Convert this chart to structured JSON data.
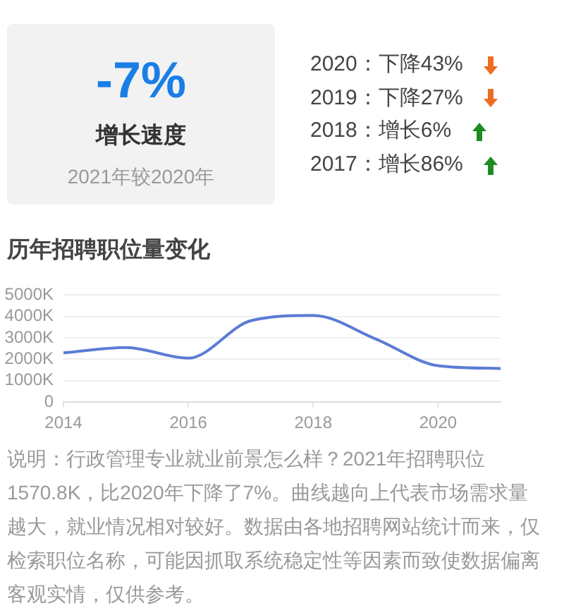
{
  "chart_data": [
    {
      "type": "other",
      "title": "-7%",
      "subtitle": "增长速度",
      "annotations": [
        "2021年较2020年",
        "2020：下降43%",
        "2019：下降27%",
        "2018：增长6%",
        "2017：增长86%"
      ]
    },
    {
      "type": "line",
      "title": "历年招聘职位量变化",
      "x": [
        2014,
        2015,
        2016,
        2017,
        2018,
        2019,
        2020,
        2021
      ],
      "values": [
        2300,
        2550,
        2050,
        3800,
        4050,
        2950,
        1700,
        1570
      ],
      "color": "#5b7bd5",
      "xlim": [
        2014,
        2021
      ],
      "xticks": [
        2014,
        2016,
        2018,
        2020
      ],
      "ylim": [
        0,
        5000
      ],
      "yticks": [
        0,
        {
          "value": 1000,
          "label": "1000K"
        },
        {
          "value": 2000,
          "label": "2000K"
        },
        {
          "value": 3000,
          "label": "3000K"
        },
        {
          "value": 4000,
          "label": "4000K"
        },
        {
          "value": 5000,
          "label": "5000K"
        }
      ],
      "grid": "y",
      "annotations": [
        "说明：行政管理专业就业前景怎么样？2021年招聘职位1570.8K，比2020年下降了7%。曲线越向上代表市场需求量越大，就业情况相对较好。数据由各地招聘网站统计而来，仅检索职位名称，可能因抓取系统稳定性等因素而致使数据偏离客观实情，仅供参考。"
      ]
    }
  ]
}
